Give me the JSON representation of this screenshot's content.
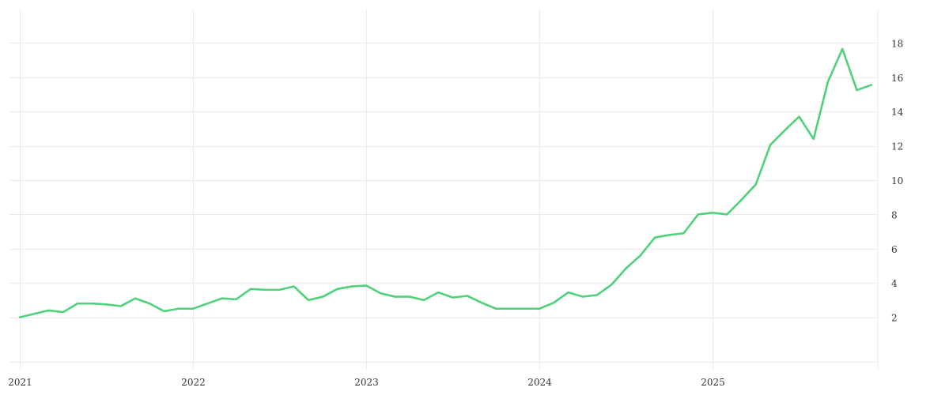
{
  "chart_data": {
    "type": "line",
    "title": "",
    "xlabel": "",
    "ylabel": "",
    "x_tick_labels": [
      "2021",
      "2022",
      "2023",
      "2024",
      "2025"
    ],
    "y_tick_labels": [
      "2",
      "4",
      "6",
      "8",
      "10",
      "12",
      "14",
      "16",
      "18"
    ],
    "y_ticks": [
      2,
      4,
      6,
      8,
      10,
      12,
      14,
      16,
      18
    ],
    "ylim": [
      -0.6,
      19.6
    ],
    "xlim": [
      "2021-01",
      "2025-12"
    ],
    "grid": true,
    "legend": "none",
    "y_axis_position": "right",
    "colors": {
      "line": "#4fd17a",
      "grid": "#ebebeb",
      "text": "#333333",
      "background": "#ffffff"
    },
    "series": [
      {
        "name": "value",
        "x": [
          "2021-01",
          "2021-02",
          "2021-03",
          "2021-04",
          "2021-05",
          "2021-06",
          "2021-07",
          "2021-08",
          "2021-09",
          "2021-10",
          "2021-11",
          "2021-12",
          "2022-01",
          "2022-02",
          "2022-03",
          "2022-04",
          "2022-05",
          "2022-06",
          "2022-07",
          "2022-08",
          "2022-09",
          "2022-10",
          "2022-11",
          "2022-12",
          "2023-01",
          "2023-02",
          "2023-03",
          "2023-04",
          "2023-05",
          "2023-06",
          "2023-07",
          "2023-08",
          "2023-09",
          "2023-10",
          "2023-11",
          "2023-12",
          "2024-01",
          "2024-02",
          "2024-03",
          "2024-04",
          "2024-05",
          "2024-06",
          "2024-07",
          "2024-08",
          "2024-09",
          "2024-10",
          "2024-11",
          "2024-12",
          "2025-01",
          "2025-02",
          "2025-03",
          "2025-04",
          "2025-05",
          "2025-06",
          "2025-07",
          "2025-08",
          "2025-09",
          "2025-10",
          "2025-11",
          "2025-12"
        ],
        "values": [
          2.0,
          2.2,
          2.4,
          2.3,
          2.8,
          2.8,
          2.75,
          2.65,
          3.1,
          2.8,
          2.35,
          2.5,
          2.5,
          2.8,
          3.1,
          3.05,
          3.65,
          3.6,
          3.6,
          3.8,
          3.0,
          3.2,
          3.65,
          3.8,
          3.85,
          3.4,
          3.2,
          3.2,
          3.0,
          3.45,
          3.15,
          3.25,
          2.85,
          2.5,
          2.5,
          2.5,
          2.5,
          2.85,
          3.45,
          3.2,
          3.3,
          3.9,
          4.85,
          5.6,
          6.65,
          6.8,
          6.9,
          8.0,
          8.1,
          8.0,
          8.85,
          9.75,
          12.05,
          12.9,
          13.7,
          12.4,
          15.75,
          17.65,
          15.25,
          15.55
        ]
      }
    ]
  }
}
